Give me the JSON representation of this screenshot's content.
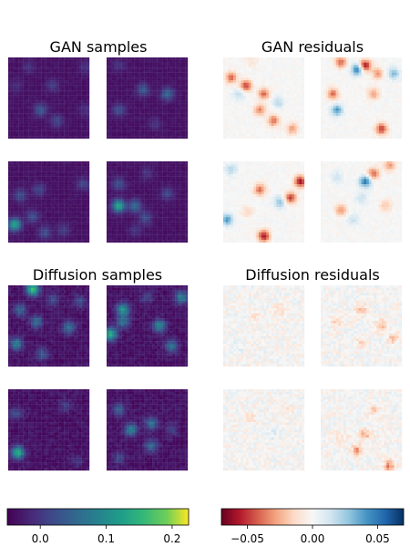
{
  "chart_data": {
    "type": "heatmap",
    "panel_titles": {
      "gan_samples": "GAN samples",
      "gan_residuals": "GAN residuals",
      "diffusion_samples": "Diffusion samples",
      "diffusion_residuals": "Diffusion residuals"
    },
    "sample_colormap": "viridis",
    "residual_colormap": "RdBu",
    "sample_colorbar": {
      "vmin": -0.05,
      "vmax": 0.225,
      "ticks": [
        "0.0",
        "0.1",
        "0.2"
      ],
      "tick_values": [
        0.0,
        0.1,
        0.2
      ]
    },
    "residual_colorbar": {
      "vmin": -0.07,
      "vmax": 0.07,
      "ticks": [
        "−0.05",
        "0.00",
        "0.05"
      ],
      "tick_values": [
        -0.05,
        0.0,
        0.05
      ]
    },
    "image_grid": "2x2 per panel",
    "image_resolution": "32x32",
    "samples": {
      "gan": [
        {
          "blobs": [
            [
              0.25,
              0.12,
              0.03
            ],
            [
              0.1,
              0.35,
              0.025
            ],
            [
              0.55,
              0.35,
              0.04
            ],
            [
              0.4,
              0.65,
              0.07
            ],
            [
              0.6,
              0.78,
              0.05
            ],
            [
              0.95,
              0.12,
              0.03
            ],
            [
              0.95,
              0.65,
              0.03
            ]
          ]
        },
        {
          "blobs": [
            [
              0.15,
              0.1,
              0.03
            ],
            [
              0.45,
              0.4,
              0.07
            ],
            [
              0.75,
              0.45,
              0.09
            ],
            [
              0.15,
              0.65,
              0.06
            ],
            [
              0.6,
              0.82,
              0.03
            ]
          ]
        },
        {
          "blobs": [
            [
              0.15,
              0.42,
              0.06
            ],
            [
              0.38,
              0.35,
              0.05
            ],
            [
              0.3,
              0.68,
              0.06
            ],
            [
              0.08,
              0.78,
              0.17
            ],
            [
              0.45,
              0.88,
              0.06
            ],
            [
              0.92,
              0.28,
              0.05
            ],
            [
              0.68,
              0.85,
              0.04
            ]
          ]
        },
        {
          "blobs": [
            [
              0.15,
              0.28,
              0.06
            ],
            [
              0.15,
              0.55,
              0.17
            ],
            [
              0.35,
              0.55,
              0.09
            ],
            [
              0.48,
              0.7,
              0.06
            ],
            [
              0.75,
              0.4,
              0.05
            ],
            [
              0.5,
              0.15,
              0.03
            ],
            [
              0.35,
              0.85,
              0.03
            ]
          ]
        }
      ],
      "diffusion": [
        {
          "blobs": [
            [
              0.3,
              0.05,
              0.2
            ],
            [
              0.55,
              0.18,
              0.06
            ],
            [
              0.15,
              0.3,
              0.08
            ],
            [
              0.35,
              0.45,
              0.09
            ],
            [
              0.1,
              0.72,
              0.12
            ],
            [
              0.42,
              0.85,
              0.07
            ],
            [
              0.75,
              0.52,
              0.1
            ],
            [
              0.88,
              0.2,
              0.06
            ]
          ]
        },
        {
          "blobs": [
            [
              0.2,
              0.3,
              0.15
            ],
            [
              0.05,
              0.6,
              0.18
            ],
            [
              0.2,
              0.45,
              0.1
            ],
            [
              0.65,
              0.5,
              0.13
            ],
            [
              0.8,
              0.75,
              0.1
            ],
            [
              0.92,
              0.15,
              0.12
            ],
            [
              0.5,
              0.15,
              0.05
            ]
          ]
        },
        {
          "blobs": [
            [
              0.1,
              0.3,
              0.06
            ],
            [
              0.12,
              0.78,
              0.18
            ],
            [
              0.7,
              0.2,
              0.04
            ],
            [
              0.85,
              0.88,
              0.03
            ]
          ]
        },
        {
          "blobs": [
            [
              0.15,
              0.25,
              0.08
            ],
            [
              0.3,
              0.5,
              0.12
            ],
            [
              0.55,
              0.42,
              0.1
            ],
            [
              0.55,
              0.7,
              0.09
            ],
            [
              0.8,
              0.5,
              0.04
            ],
            [
              0.15,
              0.85,
              0.05
            ]
          ]
        }
      ]
    },
    "residuals": {
      "gan": [
        {
          "blobs": [
            [
              0.35,
              0.05,
              -0.01
            ],
            [
              0.1,
              0.25,
              -0.04
            ],
            [
              0.28,
              0.35,
              -0.05
            ],
            [
              0.5,
              0.45,
              -0.04
            ],
            [
              0.45,
              0.65,
              -0.035
            ],
            [
              0.62,
              0.78,
              -0.04
            ],
            [
              0.2,
              0.45,
              0.02
            ],
            [
              0.68,
              0.55,
              0.02
            ],
            [
              0.85,
              0.88,
              -0.03
            ]
          ]
        },
        {
          "blobs": [
            [
              0.25,
              0.06,
              -0.04
            ],
            [
              0.45,
              0.15,
              0.05
            ],
            [
              0.55,
              0.1,
              -0.06
            ],
            [
              0.7,
              0.2,
              -0.03
            ],
            [
              0.15,
              0.45,
              -0.04
            ],
            [
              0.2,
              0.65,
              0.04
            ],
            [
              0.65,
              0.45,
              -0.03
            ],
            [
              0.75,
              0.88,
              -0.05
            ],
            [
              0.9,
              0.2,
              0.03
            ]
          ]
        },
        {
          "blobs": [
            [
              0.1,
              0.1,
              0.02
            ],
            [
              0.45,
              0.35,
              -0.04
            ],
            [
              0.7,
              0.5,
              0.03
            ],
            [
              0.83,
              0.45,
              -0.05
            ],
            [
              0.95,
              0.25,
              -0.06
            ],
            [
              0.05,
              0.72,
              0.04
            ],
            [
              0.5,
              0.92,
              -0.06
            ],
            [
              0.3,
              0.62,
              -0.015
            ]
          ]
        },
        {
          "blobs": [
            [
              0.55,
              0.25,
              0.05
            ],
            [
              0.65,
              0.15,
              -0.04
            ],
            [
              0.85,
              0.05,
              -0.03
            ],
            [
              0.2,
              0.2,
              0.015
            ],
            [
              0.25,
              0.6,
              -0.03
            ],
            [
              0.4,
              0.72,
              0.015
            ],
            [
              0.8,
              0.55,
              -0.02
            ],
            [
              0.5,
              0.45,
              0.015
            ]
          ]
        }
      ],
      "diffusion": [
        {
          "blobs": [
            [
              0.4,
              0.4,
              -0.01
            ],
            [
              0.7,
              0.3,
              -0.015
            ],
            [
              0.2,
              0.75,
              0.008
            ]
          ]
        },
        {
          "blobs": [
            [
              0.5,
              0.3,
              -0.02
            ],
            [
              0.75,
              0.5,
              -0.025
            ],
            [
              0.9,
              0.65,
              -0.02
            ],
            [
              0.2,
              0.45,
              -0.015
            ],
            [
              0.5,
              0.7,
              -0.012
            ]
          ]
        },
        {
          "blobs": [
            [
              0.35,
              0.35,
              -0.01
            ],
            [
              0.6,
              0.55,
              0.01
            ],
            [
              0.8,
              0.25,
              -0.008
            ]
          ]
        },
        {
          "blobs": [
            [
              0.55,
              0.55,
              -0.025
            ],
            [
              0.45,
              0.75,
              -0.03
            ],
            [
              0.85,
              0.95,
              -0.035
            ],
            [
              0.65,
              0.25,
              -0.015
            ],
            [
              0.25,
              0.6,
              -0.01
            ]
          ]
        }
      ]
    }
  }
}
